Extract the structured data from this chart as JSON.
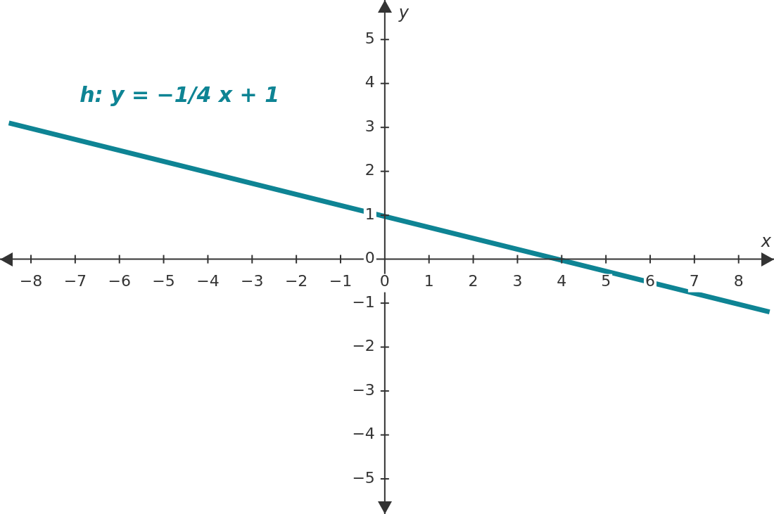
{
  "chart_data": {
    "type": "line",
    "xlabel": "x",
    "ylabel": "y",
    "annotations": [
      "h: y = −1/4 x + 1"
    ],
    "x": [
      -8.5,
      8.7
    ],
    "series": [
      {
        "color": "#0e8494",
        "values": [
          3.1,
          -1.2
        ]
      }
    ],
    "xlim": [
      -8.7,
      8.8
    ],
    "ylim": [
      -5.8,
      5.9
    ],
    "xticks": [
      {
        "value": -8,
        "label": "−8"
      },
      {
        "value": -7,
        "label": "−7"
      },
      {
        "value": -6,
        "label": "−6"
      },
      {
        "value": -5,
        "label": "−5"
      },
      {
        "value": -4,
        "label": "−4"
      },
      {
        "value": -3,
        "label": "−3"
      },
      {
        "value": -2,
        "label": "−2"
      },
      {
        "value": -1,
        "label": "−1"
      },
      0,
      1,
      2,
      3,
      4,
      5,
      6,
      7,
      8
    ],
    "yticks": [
      {
        "value": -5,
        "label": "−5"
      },
      {
        "value": -4,
        "label": "−4"
      },
      {
        "value": -3,
        "label": "−3"
      },
      {
        "value": -2,
        "label": "−2"
      },
      {
        "value": -1,
        "label": "−1"
      },
      0,
      1,
      2,
      3,
      4,
      5
    ],
    "legend": false,
    "marker": "none",
    "line_style": "solid"
  }
}
